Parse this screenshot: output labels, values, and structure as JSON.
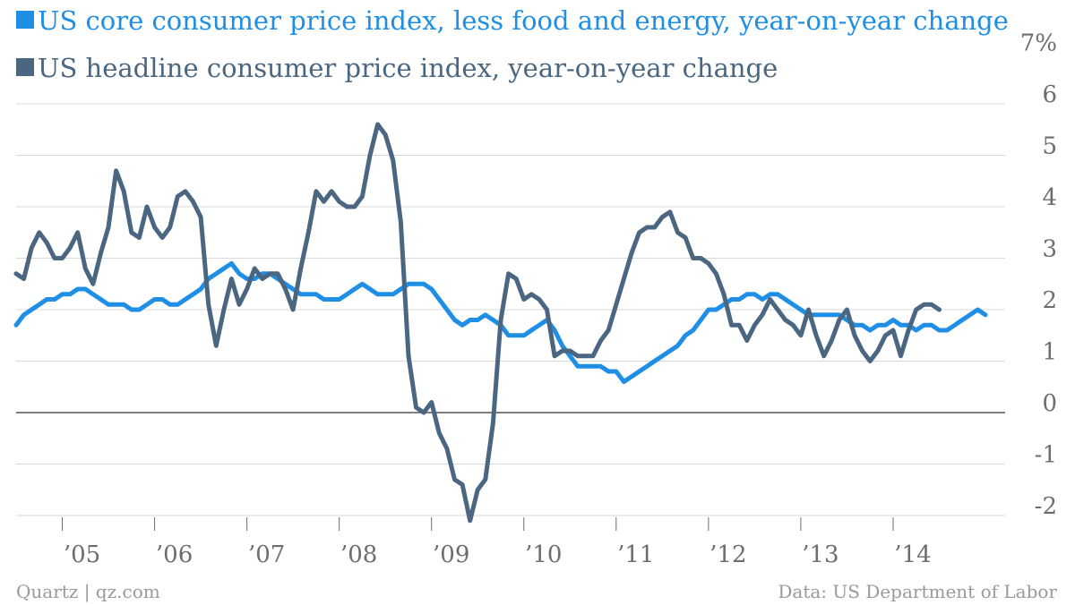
{
  "chart_data": {
    "type": "line",
    "title": "",
    "xlabel": "",
    "ylabel": "",
    "ylim": [
      -2.2,
      7
    ],
    "y_unit_suffix": "%",
    "y_ticks": [
      {
        "value": 7,
        "label": "7%"
      },
      {
        "value": 6,
        "label": "6"
      },
      {
        "value": 5,
        "label": "5"
      },
      {
        "value": 4,
        "label": "4"
      },
      {
        "value": 3,
        "label": "3"
      },
      {
        "value": 2,
        "label": "2"
      },
      {
        "value": 1,
        "label": "1"
      },
      {
        "value": 0,
        "label": "0"
      },
      {
        "value": -1,
        "label": "-1"
      },
      {
        "value": -2,
        "label": "-2"
      }
    ],
    "x_ticks": [
      {
        "label": "’05",
        "year": 2005
      },
      {
        "label": "’06",
        "year": 2006
      },
      {
        "label": "’07",
        "year": 2007
      },
      {
        "label": "’08",
        "year": 2008
      },
      {
        "label": "’09",
        "year": 2009
      },
      {
        "label": "’10",
        "year": 2010
      },
      {
        "label": "’11",
        "year": 2011
      },
      {
        "label": "’12",
        "year": 2012
      },
      {
        "label": "’13",
        "year": 2013
      },
      {
        "label": "’14",
        "year": 2014
      }
    ],
    "x_start": "2004-07",
    "grid": true,
    "legend_position": "top-left",
    "series": [
      {
        "name": "US core consumer price index, less food and energy, year-on-year change",
        "color": "#1f8fe6",
        "values": [
          1.7,
          1.9,
          2.0,
          2.1,
          2.2,
          2.2,
          2.3,
          2.3,
          2.4,
          2.4,
          2.3,
          2.2,
          2.1,
          2.1,
          2.1,
          2.0,
          2.0,
          2.1,
          2.2,
          2.2,
          2.1,
          2.1,
          2.2,
          2.3,
          2.4,
          2.6,
          2.7,
          2.8,
          2.9,
          2.7,
          2.6,
          2.6,
          2.7,
          2.7,
          2.6,
          2.5,
          2.4,
          2.3,
          2.3,
          2.3,
          2.2,
          2.2,
          2.2,
          2.3,
          2.4,
          2.5,
          2.4,
          2.3,
          2.3,
          2.3,
          2.4,
          2.5,
          2.5,
          2.5,
          2.4,
          2.2,
          2.0,
          1.8,
          1.7,
          1.8,
          1.8,
          1.9,
          1.8,
          1.7,
          1.5,
          1.5,
          1.5,
          1.6,
          1.7,
          1.8,
          1.6,
          1.3,
          1.1,
          0.9,
          0.9,
          0.9,
          0.9,
          0.8,
          0.8,
          0.6,
          0.7,
          0.8,
          0.9,
          1.0,
          1.1,
          1.2,
          1.3,
          1.5,
          1.6,
          1.8,
          2.0,
          2.0,
          2.1,
          2.2,
          2.2,
          2.3,
          2.3,
          2.2,
          2.3,
          2.3,
          2.2,
          2.1,
          2.0,
          1.9,
          1.9,
          1.9,
          1.9,
          1.9,
          1.8,
          1.7,
          1.7,
          1.6,
          1.7,
          1.7,
          1.8,
          1.7,
          1.7,
          1.6,
          1.7,
          1.7,
          1.6,
          1.6,
          1.7,
          1.8,
          1.9,
          2.0,
          1.9
        ]
      },
      {
        "name": "US headline consumer price index, year-on-year change",
        "color": "#4a6680",
        "values": [
          2.7,
          2.6,
          3.2,
          3.5,
          3.3,
          3.0,
          3.0,
          3.2,
          3.5,
          2.8,
          2.5,
          3.1,
          3.6,
          4.7,
          4.3,
          3.5,
          3.4,
          4.0,
          3.6,
          3.4,
          3.6,
          4.2,
          4.3,
          4.1,
          3.8,
          2.1,
          1.3,
          2.0,
          2.6,
          2.1,
          2.4,
          2.8,
          2.6,
          2.7,
          2.7,
          2.4,
          2.0,
          2.8,
          3.5,
          4.3,
          4.1,
          4.3,
          4.1,
          4.0,
          4.0,
          4.2,
          5.0,
          5.6,
          5.4,
          4.9,
          3.7,
          1.1,
          0.1,
          0.0,
          0.2,
          -0.4,
          -0.7,
          -1.3,
          -1.4,
          -2.1,
          -1.5,
          -1.3,
          -0.2,
          1.8,
          2.7,
          2.6,
          2.2,
          2.3,
          2.2,
          2.0,
          1.1,
          1.2,
          1.2,
          1.1,
          1.1,
          1.1,
          1.4,
          1.6,
          2.1,
          2.6,
          3.1,
          3.5,
          3.6,
          3.6,
          3.8,
          3.9,
          3.5,
          3.4,
          3.0,
          3.0,
          2.9,
          2.7,
          2.3,
          1.7,
          1.7,
          1.4,
          1.7,
          1.9,
          2.2,
          2.0,
          1.8,
          1.7,
          1.5,
          2.0,
          1.5,
          1.1,
          1.4,
          1.8,
          2.0,
          1.5,
          1.2,
          1.0,
          1.2,
          1.5,
          1.6,
          1.1,
          1.6,
          2.0,
          2.1,
          2.1,
          2.0
        ]
      }
    ]
  },
  "footer": {
    "source_left": "Quartz | qz.com",
    "source_right": "Data: US Department of Labor"
  },
  "colors": {
    "background": "#ffffff",
    "grid": "#d9d9d9",
    "zero_line": "#555555",
    "text": "#6d6d6d",
    "footer": "#9a9a9a"
  }
}
